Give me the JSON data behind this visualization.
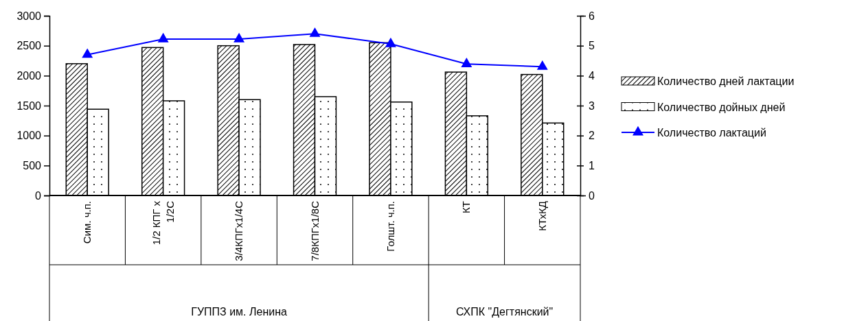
{
  "chart_data": {
    "type": "bar",
    "categories": [
      "Сим. ч.п.",
      "1/2 КПГ x 1/2С",
      "3/4КПГх1/4С",
      "7/8КПГх1/8С",
      "Голшт. ч.п.",
      "КТ",
      "КТхКД"
    ],
    "series": [
      {
        "name": "Количество дней лактации",
        "color": "#000000",
        "values": [
          2200,
          2470,
          2500,
          2520,
          2550,
          2060,
          2020
        ]
      },
      {
        "name": "Количество дойных дней",
        "color": "#000000",
        "values": [
          1440,
          1580,
          1600,
          1650,
          1560,
          1330,
          1210
        ]
      },
      {
        "name": "Количество лактаций",
        "type": "line",
        "axis": "y2",
        "color": "#0000ff",
        "values": [
          4.7,
          5.22,
          5.22,
          5.4,
          5.06,
          4.39,
          4.3
        ]
      }
    ],
    "ylim": [
      0,
      3000
    ],
    "yticks": [
      0,
      500,
      1000,
      1500,
      2000,
      2500,
      3000
    ],
    "y2lim": [
      0,
      6
    ],
    "y2ticks": [
      0,
      1,
      2,
      3,
      4,
      5,
      6
    ],
    "annotations": [
      "ГУППЗ им. Ленина",
      "СХПК \"Дегтянский\""
    ],
    "legend": "right",
    "marker": "triangle",
    "grid": false
  }
}
